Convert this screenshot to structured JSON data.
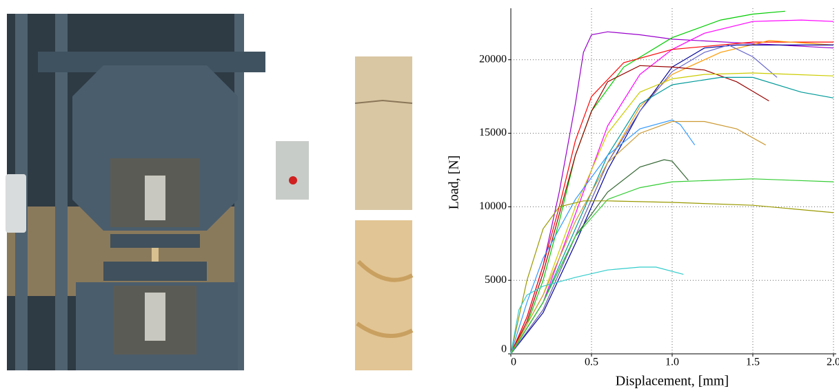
{
  "chart_data": {
    "type": "line",
    "x_label": "Displacement, [mm]",
    "y_label": "Load, [N]",
    "xlim": [
      0,
      2.0
    ],
    "ylim": [
      0,
      23500
    ],
    "xticks": [
      0,
      0.5,
      {
        "value": 1,
        "label": "1.0"
      },
      1.5,
      {
        "value": 2,
        "label": "2.0"
      }
    ],
    "yticks": [
      0,
      5000,
      10000,
      15000,
      20000
    ],
    "grid": true,
    "series": [
      {
        "color": "#9900cc",
        "x": [
          0,
          0.1,
          0.2,
          0.3,
          0.4,
          0.45,
          0.5,
          0.6,
          0.8,
          1.0,
          1.5,
          2.0
        ],
        "values": [
          0,
          2500,
          6000,
          11000,
          17000,
          20500,
          21700,
          21900,
          21700,
          21400,
          21100,
          20800
        ]
      },
      {
        "color": "#00cc00",
        "x": [
          0,
          0.1,
          0.2,
          0.3,
          0.4,
          0.5,
          0.7,
          1.0,
          1.3,
          1.5,
          1.7
        ],
        "values": [
          0,
          2000,
          5000,
          9000,
          13500,
          16500,
          19500,
          21500,
          22700,
          23100,
          23300
        ]
      },
      {
        "color": "#ff00ff",
        "x": [
          0,
          0.2,
          0.4,
          0.6,
          0.8,
          1.0,
          1.2,
          1.5,
          1.8,
          2.0
        ],
        "values": [
          0,
          3500,
          9500,
          15500,
          19000,
          20700,
          21800,
          22600,
          22700,
          22600
        ]
      },
      {
        "color": "#ff0000",
        "x": [
          0,
          0.1,
          0.2,
          0.3,
          0.4,
          0.5,
          0.7,
          1.0,
          1.5,
          2.0
        ],
        "values": [
          0,
          2500,
          6000,
          10000,
          14500,
          17500,
          19800,
          20700,
          21200,
          21200
        ]
      },
      {
        "color": "#ff9900",
        "x": [
          0,
          0.2,
          0.4,
          0.6,
          0.8,
          1.0,
          1.3,
          1.6,
          2.0
        ],
        "values": [
          0,
          3000,
          8000,
          13000,
          16800,
          19000,
          20500,
          21300,
          21000
        ]
      },
      {
        "color": "#000099",
        "x": [
          0,
          0.2,
          0.4,
          0.6,
          0.8,
          1.0,
          1.2,
          1.4,
          1.6,
          2.0
        ],
        "values": [
          0,
          2800,
          7500,
          12500,
          16500,
          19500,
          20800,
          21000,
          21000,
          21000
        ]
      },
      {
        "color": "#6666cc",
        "x": [
          0,
          0.2,
          0.4,
          0.6,
          0.8,
          1.0,
          1.2,
          1.35,
          1.5,
          1.65
        ],
        "values": [
          0,
          3000,
          8000,
          13000,
          16500,
          19200,
          20500,
          21000,
          20200,
          18800
        ]
      },
      {
        "color": "#990000",
        "x": [
          0,
          0.1,
          0.2,
          0.3,
          0.4,
          0.5,
          0.6,
          0.8,
          1.0,
          1.2,
          1.4,
          1.6
        ],
        "values": [
          0,
          2200,
          5500,
          9500,
          13500,
          16500,
          18500,
          19600,
          19500,
          19300,
          18500,
          17200
        ]
      },
      {
        "color": "#cccc00",
        "x": [
          0,
          0.2,
          0.4,
          0.6,
          0.8,
          1.0,
          1.2,
          1.5,
          2.0
        ],
        "values": [
          0,
          4000,
          10000,
          15000,
          17800,
          18700,
          19000,
          19100,
          18900
        ]
      },
      {
        "color": "#009999",
        "x": [
          0,
          0.2,
          0.4,
          0.6,
          0.8,
          1.0,
          1.3,
          1.5,
          1.8,
          2.0
        ],
        "values": [
          0,
          3500,
          8500,
          13500,
          17000,
          18300,
          18800,
          18800,
          17800,
          17400
        ]
      },
      {
        "color": "#3399ff",
        "x": [
          0,
          0.1,
          0.2,
          0.4,
          0.6,
          0.8,
          1.0,
          1.05,
          1.14
        ],
        "values": [
          0,
          3500,
          6500,
          10500,
          13500,
          15300,
          15900,
          15600,
          14200
        ]
      },
      {
        "color": "#cc9933",
        "x": [
          0,
          0.2,
          0.4,
          0.6,
          0.8,
          1.0,
          1.2,
          1.4,
          1.58
        ],
        "values": [
          0,
          4000,
          9000,
          13000,
          15000,
          15800,
          15800,
          15300,
          14200
        ]
      },
      {
        "color": "#336633",
        "x": [
          0,
          0.2,
          0.4,
          0.6,
          0.8,
          0.95,
          1.0,
          1.1
        ],
        "values": [
          0,
          3500,
          8000,
          11000,
          12700,
          13200,
          13100,
          11800
        ]
      },
      {
        "color": "#33cc33",
        "x": [
          0,
          0.2,
          0.4,
          0.6,
          0.8,
          1.0,
          1.5,
          2.0
        ],
        "values": [
          0,
          3500,
          8000,
          10500,
          11300,
          11700,
          11900,
          11700
        ]
      },
      {
        "color": "#999900",
        "x": [
          0,
          0.1,
          0.2,
          0.3,
          0.45,
          0.6,
          1.0,
          1.5,
          2.0
        ],
        "values": [
          0,
          5000,
          8500,
          10000,
          10400,
          10400,
          10300,
          10100,
          9600
        ]
      },
      {
        "color": "#33cccc",
        "x": [
          0,
          0.05,
          0.1,
          0.2,
          0.4,
          0.6,
          0.8,
          0.9,
          1.07
        ],
        "values": [
          0,
          3000,
          4000,
          4600,
          5200,
          5700,
          5900,
          5900,
          5400
        ]
      }
    ]
  }
}
